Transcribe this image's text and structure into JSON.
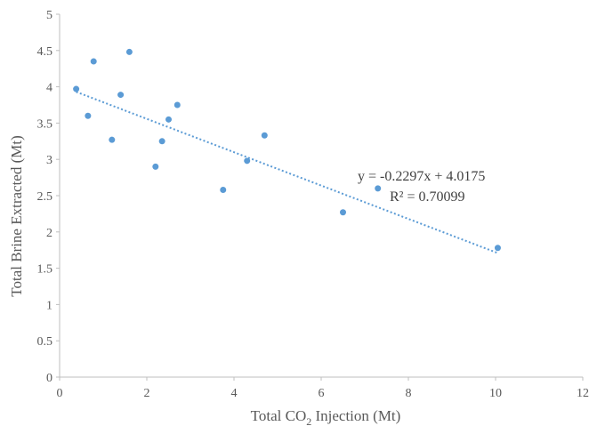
{
  "chart_data": {
    "type": "scatter",
    "title": "",
    "xlabel_main": "Total CO",
    "xlabel_sub": "2",
    "xlabel_tail": " Injection (Mt)",
    "ylabel": "Total Brine Extracted (Mt)",
    "xlim": [
      0,
      12
    ],
    "ylim": [
      0,
      5
    ],
    "x_ticks": [
      "0",
      "2",
      "4",
      "6",
      "8",
      "10",
      "12"
    ],
    "y_ticks": [
      "0",
      "0.5",
      "1",
      "1.5",
      "2",
      "2.5",
      "3",
      "3.5",
      "4",
      "4.5",
      "5"
    ],
    "grid": false,
    "legend": "none",
    "marker_color": "#5b9bd5",
    "trendline_color": "#5b9bd5",
    "series": [
      {
        "x": [
          0.38,
          0.65,
          0.78,
          1.2,
          1.4,
          1.6,
          2.2,
          2.35,
          2.5,
          2.7,
          3.75,
          4.3,
          4.7,
          6.5,
          7.3,
          10.05
        ],
        "y": [
          3.97,
          3.6,
          4.35,
          3.27,
          3.89,
          4.48,
          2.9,
          3.25,
          3.55,
          3.75,
          2.58,
          2.98,
          3.33,
          2.27,
          2.6,
          1.78
        ]
      }
    ],
    "trendline": {
      "slope": -0.2297,
      "intercept": 4.0175,
      "x_range": [
        0.38,
        10.05
      ],
      "equation_label": "y = -0.2297x + 4.0175",
      "r2_label": "R² = 0.70099"
    }
  }
}
